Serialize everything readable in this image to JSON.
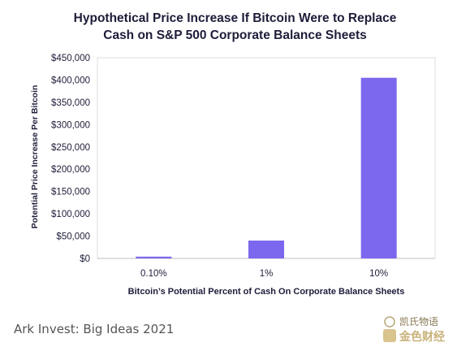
{
  "chart_data": {
    "type": "bar",
    "title_line1": "Hypothetical Price Increase If Bitcoin Were to Replace",
    "title_line2": "Cash on S&P 500 Corporate Balance Sheets",
    "xlabel": "Bitcoin’s Potential Percent of Cash On Corporate Balance Sheets",
    "ylabel": "Potential Price Increase Per Bitcoin",
    "categories": [
      "0.10%",
      "1%",
      "10%"
    ],
    "values": [
      4000,
      40000,
      405000
    ],
    "ylim": [
      0,
      450000
    ],
    "yticks": [
      0,
      50000,
      100000,
      150000,
      200000,
      250000,
      300000,
      350000,
      400000,
      450000
    ],
    "ytick_labels": [
      "$0",
      "$50,000",
      "$100,000",
      "$150,000",
      "$200,000",
      "$250,000",
      "$300,000",
      "$350,000",
      "$400,000",
      "$450,000"
    ],
    "grid": false,
    "bar_color": "#7b68ee"
  },
  "source": "Ark Invest: Big Ideas 2021",
  "watermark": {
    "text_top": "凯氏物语",
    "text_bottom": "金色财经"
  }
}
